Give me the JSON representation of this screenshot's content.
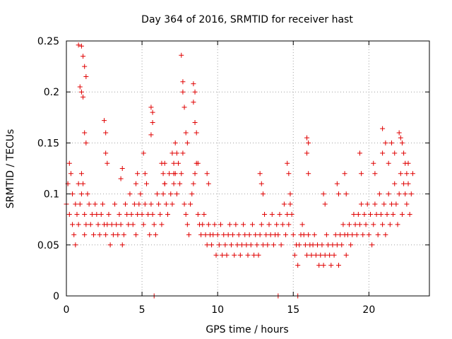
{
  "chart_data": {
    "type": "scatter",
    "title": "Day 364 of 2016, SRMTID for receiver hast",
    "xlabel": "GPS time / hours",
    "ylabel": "SRMTID / TECUs",
    "xlim": [
      0,
      24
    ],
    "ylim": [
      0,
      0.25
    ],
    "xticks": [
      0,
      5,
      10,
      15,
      20
    ],
    "xtick_labels": [
      "0",
      "5",
      "10",
      "15",
      "20"
    ],
    "yticks": [
      0,
      0.05,
      0.1,
      0.15,
      0.2,
      0.25
    ],
    "ytick_labels": [
      "0",
      "0.05",
      "0.1",
      "0.15",
      "0.2",
      "0.25"
    ],
    "grid": true,
    "marker": "+",
    "color": "#e00000",
    "series": [
      {
        "name": "SRMTID",
        "x": [
          0.0,
          0.1,
          0.2,
          0.2,
          0.3,
          0.4,
          0.4,
          0.5,
          0.6,
          0.6,
          0.7,
          0.8,
          0.8,
          0.9,
          1.0,
          1.0,
          1.1,
          1.2,
          1.2,
          1.3,
          1.4,
          1.5,
          1.6,
          1.7,
          1.8,
          1.9,
          2.0,
          2.1,
          2.2,
          2.3,
          2.4,
          2.5,
          2.6,
          2.7,
          2.8,
          2.9,
          3.0,
          3.1,
          3.2,
          3.3,
          3.4,
          3.5,
          3.6,
          3.7,
          3.8,
          3.9,
          4.0,
          4.1,
          4.2,
          4.3,
          4.4,
          4.5,
          4.6,
          4.7,
          4.8,
          4.9,
          5.0,
          5.1,
          5.2,
          5.3,
          5.4,
          5.5,
          5.6,
          5.7,
          5.8,
          5.9,
          6.0,
          6.1,
          6.2,
          6.3,
          6.4,
          6.5,
          6.6,
          6.7,
          6.8,
          6.9,
          7.0,
          7.1,
          7.2,
          7.3,
          7.4,
          7.5,
          7.6,
          7.7,
          7.8,
          7.9,
          8.0,
          8.1,
          8.2,
          8.3,
          8.4,
          8.5,
          8.6,
          8.7,
          8.8,
          8.9,
          9.0,
          9.1,
          9.2,
          9.3,
          9.4,
          9.5,
          9.6,
          9.7,
          9.8,
          9.9,
          10.0,
          10.1,
          10.2,
          10.3,
          10.4,
          10.5,
          10.6,
          10.7,
          10.8,
          10.9,
          11.0,
          11.1,
          11.2,
          11.3,
          11.4,
          11.5,
          11.6,
          11.7,
          11.8,
          11.9,
          12.0,
          12.1,
          12.2,
          12.3,
          12.4,
          12.5,
          12.6,
          12.7,
          12.8,
          12.9,
          13.0,
          13.1,
          13.2,
          13.3,
          13.4,
          13.5,
          13.6,
          13.7,
          13.8,
          13.9,
          14.0,
          14.1,
          14.2,
          14.3,
          14.4,
          14.5,
          14.6,
          14.7,
          14.8,
          14.9,
          15.0,
          15.1,
          15.2,
          15.3,
          15.4,
          15.5,
          15.6,
          15.7,
          15.8,
          15.9,
          16.0,
          16.1,
          16.2,
          16.3,
          16.4,
          16.5,
          16.6,
          16.7,
          16.8,
          16.9,
          17.0,
          17.1,
          17.2,
          17.3,
          17.4,
          17.5,
          17.6,
          17.7,
          17.8,
          17.9,
          18.0,
          18.1,
          18.2,
          18.3,
          18.4,
          18.5,
          18.6,
          18.7,
          18.8,
          18.9,
          19.0,
          19.1,
          19.2,
          19.3,
          19.4,
          19.5,
          19.6,
          19.7,
          19.8,
          19.9,
          20.0,
          20.1,
          20.2,
          20.3,
          20.4,
          20.5,
          20.6,
          20.7,
          20.8,
          20.9,
          21.0,
          21.1,
          21.2,
          21.3,
          21.4,
          21.5,
          21.6,
          21.7,
          21.8,
          21.9,
          22.0,
          22.1,
          22.2,
          22.3,
          22.4,
          22.5,
          22.6,
          22.7,
          22.8,
          22.9,
          0.8,
          0.9,
          1.0,
          1.0,
          1.1,
          1.1,
          1.2,
          1.2,
          1.3,
          1.3,
          2.5,
          2.6,
          2.6,
          2.7,
          3.6,
          3.7,
          4.6,
          4.7,
          5.1,
          5.2,
          5.6,
          5.6,
          5.7,
          5.7,
          6.3,
          6.4,
          6.5,
          6.5,
          7.0,
          7.1,
          7.1,
          7.2,
          7.3,
          7.6,
          7.7,
          7.7,
          7.8,
          7.9,
          8.0,
          8.4,
          8.4,
          8.5,
          8.5,
          8.6,
          8.7,
          9.3,
          9.4,
          12.8,
          12.9,
          13.0,
          14.6,
          14.7,
          14.8,
          15.9,
          15.9,
          16.0,
          16.0,
          17.0,
          17.1,
          17.9,
          18.0,
          18.4,
          18.5,
          19.4,
          19.5,
          20.3,
          20.4,
          20.9,
          20.9,
          21.1,
          21.3,
          21.5,
          21.7,
          22.0,
          22.1,
          22.2,
          22.3,
          22.4,
          22.5,
          22.6,
          5.8,
          14.0,
          15.3
        ],
        "y": [
          0.09,
          0.11,
          0.13,
          0.08,
          0.12,
          0.07,
          0.1,
          0.06,
          0.09,
          0.05,
          0.08,
          0.07,
          0.11,
          0.09,
          0.12,
          0.1,
          0.11,
          0.06,
          0.08,
          0.07,
          0.1,
          0.09,
          0.07,
          0.08,
          0.06,
          0.09,
          0.08,
          0.07,
          0.06,
          0.08,
          0.09,
          0.07,
          0.06,
          0.07,
          0.08,
          0.05,
          0.07,
          0.06,
          0.09,
          0.07,
          0.06,
          0.08,
          0.07,
          0.05,
          0.06,
          0.09,
          0.08,
          0.07,
          0.1,
          0.08,
          0.07,
          0.09,
          0.06,
          0.08,
          0.09,
          0.1,
          0.08,
          0.07,
          0.09,
          0.11,
          0.08,
          0.06,
          0.09,
          0.08,
          0.07,
          0.06,
          0.1,
          0.09,
          0.08,
          0.07,
          0.1,
          0.11,
          0.09,
          0.08,
          0.12,
          0.1,
          0.09,
          0.11,
          0.12,
          0.1,
          0.13,
          0.11,
          0.12,
          0.14,
          0.09,
          0.08,
          0.07,
          0.06,
          0.09,
          0.1,
          0.11,
          0.12,
          0.13,
          0.08,
          0.07,
          0.06,
          0.07,
          0.08,
          0.06,
          0.05,
          0.07,
          0.06,
          0.05,
          0.06,
          0.07,
          0.04,
          0.06,
          0.05,
          0.07,
          0.04,
          0.06,
          0.05,
          0.04,
          0.06,
          0.07,
          0.05,
          0.06,
          0.04,
          0.07,
          0.05,
          0.06,
          0.04,
          0.05,
          0.07,
          0.06,
          0.05,
          0.04,
          0.06,
          0.05,
          0.07,
          0.04,
          0.06,
          0.05,
          0.04,
          0.06,
          0.07,
          0.05,
          0.08,
          0.06,
          0.05,
          0.07,
          0.06,
          0.08,
          0.05,
          0.06,
          0.07,
          0.06,
          0.08,
          0.05,
          0.07,
          0.09,
          0.06,
          0.08,
          0.07,
          0.09,
          0.08,
          0.06,
          0.04,
          0.05,
          0.03,
          0.05,
          0.06,
          0.07,
          0.06,
          0.05,
          0.04,
          0.06,
          0.05,
          0.04,
          0.05,
          0.06,
          0.04,
          0.05,
          0.03,
          0.04,
          0.05,
          0.03,
          0.04,
          0.06,
          0.05,
          0.04,
          0.03,
          0.05,
          0.04,
          0.06,
          0.05,
          0.03,
          0.06,
          0.05,
          0.07,
          0.06,
          0.04,
          0.06,
          0.07,
          0.05,
          0.06,
          0.08,
          0.07,
          0.06,
          0.08,
          0.07,
          0.09,
          0.06,
          0.08,
          0.07,
          0.09,
          0.06,
          0.08,
          0.05,
          0.07,
          0.09,
          0.08,
          0.06,
          0.1,
          0.08,
          0.07,
          0.09,
          0.06,
          0.08,
          0.1,
          0.07,
          0.09,
          0.08,
          0.11,
          0.09,
          0.07,
          0.1,
          0.12,
          0.08,
          0.11,
          0.1,
          0.09,
          0.13,
          0.08,
          0.1,
          0.12,
          0.246,
          0.205,
          0.245,
          0.2,
          0.235,
          0.195,
          0.225,
          0.16,
          0.215,
          0.15,
          0.172,
          0.16,
          0.14,
          0.13,
          0.115,
          0.125,
          0.11,
          0.12,
          0.14,
          0.12,
          0.158,
          0.185,
          0.18,
          0.17,
          0.13,
          0.12,
          0.11,
          0.13,
          0.14,
          0.13,
          0.12,
          0.15,
          0.14,
          0.236,
          0.21,
          0.2,
          0.185,
          0.16,
          0.15,
          0.208,
          0.19,
          0.2,
          0.17,
          0.16,
          0.13,
          0.12,
          0.11,
          0.12,
          0.11,
          0.1,
          0.13,
          0.12,
          0.1,
          0.155,
          0.14,
          0.15,
          0.12,
          0.1,
          0.09,
          0.11,
          0.1,
          0.12,
          0.1,
          0.14,
          0.12,
          0.13,
          0.12,
          0.164,
          0.14,
          0.15,
          0.13,
          0.15,
          0.14,
          0.16,
          0.155,
          0.15,
          0.14,
          0.13,
          0.12,
          0.11,
          0.0,
          0.0,
          0.0
        ]
      }
    ]
  }
}
